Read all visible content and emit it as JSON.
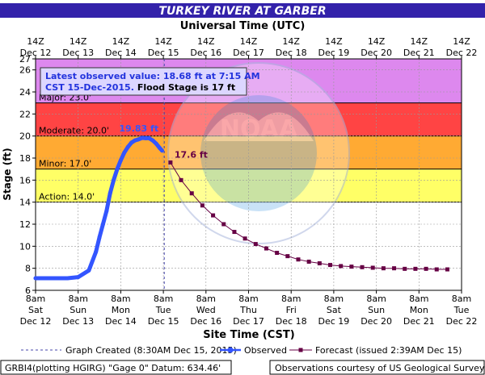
{
  "chart_data": {
    "type": "line",
    "title": "TURKEY RIVER AT GARBER",
    "top_axis_title": "Universal Time (UTC)",
    "xlabel": "Site Time (CST)",
    "ylabel": "Stage (ft)",
    "ylim": [
      6,
      27
    ],
    "y_ticks": [
      6,
      8,
      10,
      12,
      14,
      16,
      18,
      20,
      22,
      24,
      26,
      27
    ],
    "x_range": [
      "2015-12-12T08:00",
      "2015-12-22T08:00"
    ],
    "x_ticks_bottom": [
      {
        "time": "8am",
        "day": "Sat",
        "date": "Dec 12"
      },
      {
        "time": "8am",
        "day": "Sun",
        "date": "Dec 13"
      },
      {
        "time": "8am",
        "day": "Mon",
        "date": "Dec 14"
      },
      {
        "time": "8am",
        "day": "Tue",
        "date": "Dec 15"
      },
      {
        "time": "8am",
        "day": "Wed",
        "date": "Dec 16"
      },
      {
        "time": "8am",
        "day": "Thu",
        "date": "Dec 17"
      },
      {
        "time": "8am",
        "day": "Fri",
        "date": "Dec 18"
      },
      {
        "time": "8am",
        "day": "Sat",
        "date": "Dec 19"
      },
      {
        "time": "8am",
        "day": "Sun",
        "date": "Dec 20"
      },
      {
        "time": "8am",
        "day": "Mon",
        "date": "Dec 21"
      },
      {
        "time": "8am",
        "day": "Tue",
        "date": "Dec 22"
      }
    ],
    "x_ticks_top": [
      {
        "time": "14Z",
        "date": "Dec 12"
      },
      {
        "time": "14Z",
        "date": "Dec 13"
      },
      {
        "time": "14Z",
        "date": "Dec 14"
      },
      {
        "time": "14Z",
        "date": "Dec 15"
      },
      {
        "time": "14Z",
        "date": "Dec 16"
      },
      {
        "time": "14Z",
        "date": "Dec 17"
      },
      {
        "time": "14Z",
        "date": "Dec 18"
      },
      {
        "time": "14Z",
        "date": "Dec 19"
      },
      {
        "time": "14Z",
        "date": "Dec 20"
      },
      {
        "time": "14Z",
        "date": "Dec 21"
      },
      {
        "time": "14Z",
        "date": "Dec 22"
      }
    ],
    "flood_bands": [
      {
        "label": "Action: 14.0'",
        "from": 14,
        "to": 17,
        "color": "#ffff66"
      },
      {
        "label": "Minor: 17.0'",
        "from": 17,
        "to": 20,
        "color": "#ffaa33"
      },
      {
        "label": "Moderate: 20.0'",
        "from": 20,
        "to": 23,
        "color": "#ff4444"
      },
      {
        "label": "Major: 23.0'",
        "from": 23,
        "to": 27,
        "color": "#dd88ee"
      }
    ],
    "series": [
      {
        "name": "Observed",
        "color": "#3355ff",
        "points": [
          [
            "2015-12-12T08:00",
            7.1
          ],
          [
            "2015-12-12T20:00",
            7.1
          ],
          [
            "2015-12-13T02:00",
            7.1
          ],
          [
            "2015-12-13T08:00",
            7.2
          ],
          [
            "2015-12-13T14:00",
            7.8
          ],
          [
            "2015-12-13T18:00",
            9.5
          ],
          [
            "2015-12-13T20:00",
            10.8
          ],
          [
            "2015-12-13T22:00",
            12.0
          ],
          [
            "2015-12-14T00:00",
            13.2
          ],
          [
            "2015-12-14T02:00",
            14.8
          ],
          [
            "2015-12-14T04:00",
            16.0
          ],
          [
            "2015-12-14T06:00",
            17.0
          ],
          [
            "2015-12-14T08:00",
            17.8
          ],
          [
            "2015-12-14T10:00",
            18.5
          ],
          [
            "2015-12-14T12:00",
            19.0
          ],
          [
            "2015-12-14T14:00",
            19.4
          ],
          [
            "2015-12-14T16:00",
            19.6
          ],
          [
            "2015-12-14T18:00",
            19.7
          ],
          [
            "2015-12-14T20:00",
            19.83
          ],
          [
            "2015-12-14T22:00",
            19.8
          ],
          [
            "2015-12-15T00:00",
            19.8
          ],
          [
            "2015-12-15T02:00",
            19.6
          ],
          [
            "2015-12-15T04:00",
            19.3
          ],
          [
            "2015-12-15T06:00",
            18.9
          ],
          [
            "2015-12-15T07:15",
            18.68
          ]
        ]
      },
      {
        "name": "Forecast (issued 2:39AM Dec 15)",
        "color": "#660044",
        "points": [
          [
            "2015-12-15T12:00",
            17.6
          ],
          [
            "2015-12-15T18:00",
            16.0
          ],
          [
            "2015-12-16T00:00",
            14.8
          ],
          [
            "2015-12-16T06:00",
            13.7
          ],
          [
            "2015-12-16T12:00",
            12.8
          ],
          [
            "2015-12-16T18:00",
            12.0
          ],
          [
            "2015-12-17T00:00",
            11.3
          ],
          [
            "2015-12-17T06:00",
            10.7
          ],
          [
            "2015-12-17T12:00",
            10.2
          ],
          [
            "2015-12-17T18:00",
            9.8
          ],
          [
            "2015-12-18T00:00",
            9.4
          ],
          [
            "2015-12-18T06:00",
            9.1
          ],
          [
            "2015-12-18T12:00",
            8.8
          ],
          [
            "2015-12-18T18:00",
            8.6
          ],
          [
            "2015-12-19T00:00",
            8.45
          ],
          [
            "2015-12-19T06:00",
            8.3
          ],
          [
            "2015-12-19T12:00",
            8.2
          ],
          [
            "2015-12-19T18:00",
            8.15
          ],
          [
            "2015-12-20T00:00",
            8.1
          ],
          [
            "2015-12-20T06:00",
            8.05
          ],
          [
            "2015-12-20T12:00",
            8.0
          ],
          [
            "2015-12-20T18:00",
            8.0
          ],
          [
            "2015-12-21T00:00",
            7.95
          ],
          [
            "2015-12-21T06:00",
            7.95
          ],
          [
            "2015-12-21T12:00",
            7.95
          ],
          [
            "2015-12-21T18:00",
            7.9
          ],
          [
            "2015-12-22T00:00",
            7.9
          ]
        ]
      }
    ],
    "graph_created": "2015-12-15T08:30",
    "annotations": {
      "peak_label": "19.83 ft",
      "forecast_label": "17.6 ft",
      "info_line1": "Latest observed value: 18.68 ft at 7:15 AM",
      "info_line2a": "CST 15-Dec-2015.",
      "info_line2b": "Flood Stage is 17 ft"
    },
    "watermark": "NATIONAL OCEANIC AND ATMOSPHERIC ADMINISTRATION · U.S. DEPARTMENT OF COMMERCE · NOAA",
    "grid": true
  },
  "legend": {
    "graph_created": "Graph Created (8:30AM Dec 15, 2015)",
    "observed": "Observed",
    "forecast": "Forecast (issued 2:39AM Dec 15)"
  },
  "footer": {
    "left": "GRBI4(plotting HGIRG) \"Gage 0\" Datum: 634.46'",
    "right": "Observations courtesy of US Geological Survey"
  },
  "colors": {
    "title_bg": "#3322aa",
    "title_text": "#ffffff",
    "observed": "#3355ff",
    "forecast": "#660044",
    "info_box_bg": "#dcd6ff"
  }
}
